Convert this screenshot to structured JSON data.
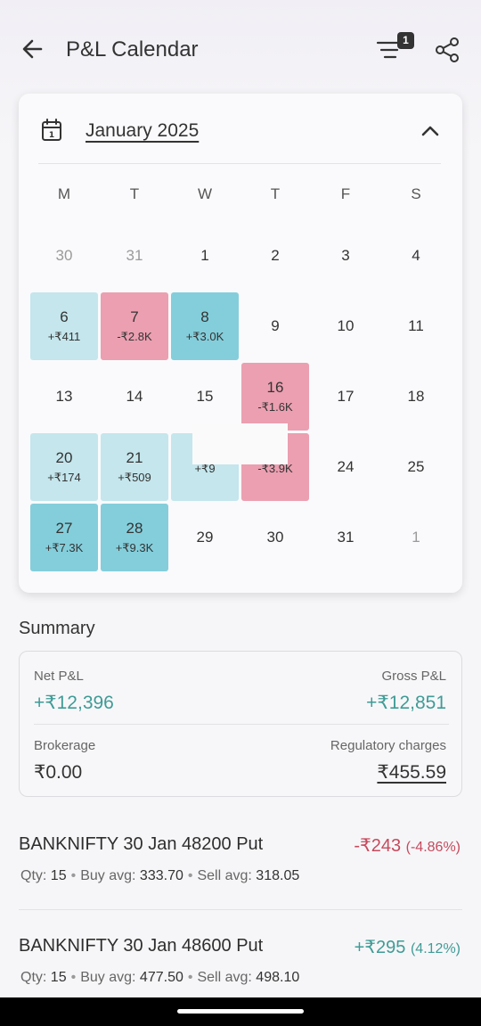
{
  "header": {
    "title": "P&L Calendar",
    "filter_count": "1"
  },
  "calendar": {
    "month_label": "January 2025",
    "weekdays": [
      "M",
      "T",
      "W",
      "T",
      "F",
      "S"
    ],
    "weeks": [
      [
        {
          "day": "30",
          "muted": true
        },
        {
          "day": "31",
          "muted": true
        },
        {
          "day": "1"
        },
        {
          "day": "2"
        },
        {
          "day": "3"
        },
        {
          "day": "4"
        }
      ],
      [
        {
          "day": "6",
          "pnl": "+₹411",
          "tone": "light"
        },
        {
          "day": "7",
          "pnl": "-₹2.8K",
          "tone": "pink"
        },
        {
          "day": "8",
          "pnl": "+₹3.0K",
          "tone": "teal"
        },
        {
          "day": "9"
        },
        {
          "day": "10"
        },
        {
          "day": "11"
        }
      ],
      [
        {
          "day": "13"
        },
        {
          "day": "14"
        },
        {
          "day": "15"
        },
        {
          "day": "16",
          "pnl": "-₹1.6K",
          "tone": "pink"
        },
        {
          "day": "17"
        },
        {
          "day": "18"
        }
      ],
      [
        {
          "day": "20",
          "pnl": "+₹174",
          "tone": "light"
        },
        {
          "day": "21",
          "pnl": "+₹509",
          "tone": "light"
        },
        {
          "day": "",
          "pnl": "+₹9",
          "tone": "light"
        },
        {
          "day": "",
          "pnl": "-₹3.9K",
          "tone": "pink"
        },
        {
          "day": "24"
        },
        {
          "day": "25"
        }
      ],
      [
        {
          "day": "27",
          "pnl": "+₹7.3K",
          "tone": "teal"
        },
        {
          "day": "28",
          "pnl": "+₹9.3K",
          "tone": "teal"
        },
        {
          "day": "29"
        },
        {
          "day": "30"
        },
        {
          "day": "31"
        },
        {
          "day": "1",
          "muted": true
        }
      ]
    ]
  },
  "summary": {
    "title": "Summary",
    "net_label": "Net P&L",
    "net_value": "+₹12,396",
    "gross_label": "Gross P&L",
    "gross_value": "+₹12,851",
    "brokerage_label": "Brokerage",
    "brokerage_value": "₹0.00",
    "reg_label": "Regulatory charges",
    "reg_value": "₹455.59"
  },
  "trades": [
    {
      "name": "BANKNIFTY 30 Jan 48200 Put",
      "pnl": "-₹243",
      "pct": "(-4.86%)",
      "positive": false,
      "qty_label": "Qty:",
      "qty": "15",
      "buy_label": "Buy avg:",
      "buy": "333.70",
      "sell_label": "Sell avg:",
      "sell": "318.05"
    },
    {
      "name": "BANKNIFTY 30 Jan 48600 Put",
      "pnl": "+₹295",
      "pct": "(4.12%)",
      "positive": true,
      "qty_label": "Qty:",
      "qty": "15",
      "buy_label": "Buy avg:",
      "buy": "477.50",
      "sell_label": "Sell avg:",
      "sell": "498.10"
    }
  ],
  "colors": {
    "profit": "#3f9b96",
    "loss": "#c64a5d",
    "light_profit": "#c4e6ec",
    "strong_profit": "#84cedb",
    "loss_bg": "#eb9fb0"
  }
}
